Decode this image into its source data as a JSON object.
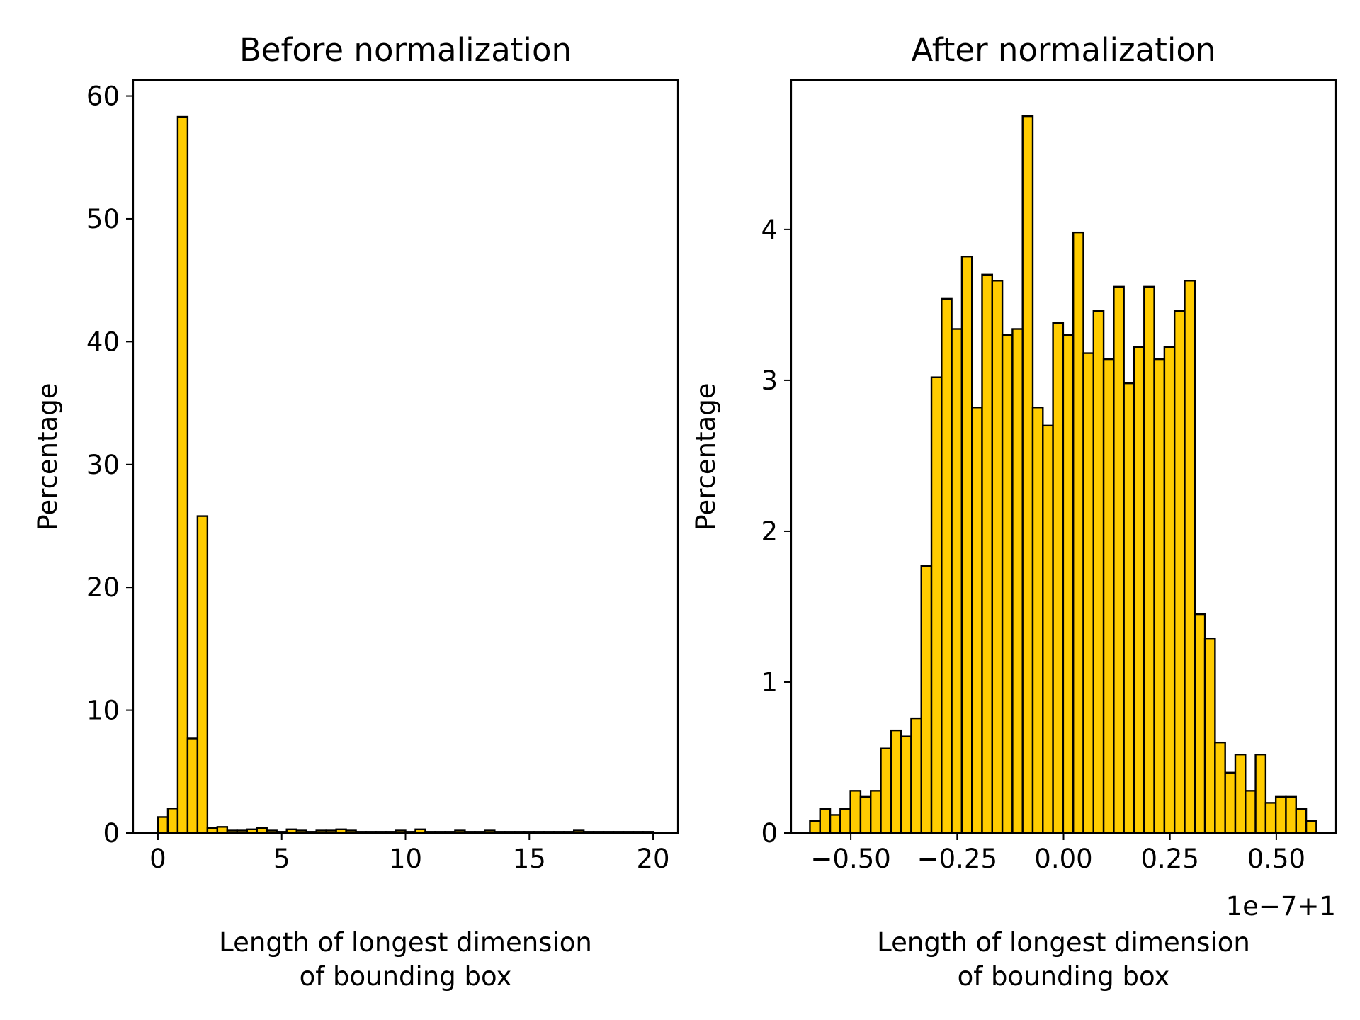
{
  "chart_data": [
    {
      "type": "bar",
      "title": "Before normalization",
      "xlabel": "Length of longest dimension\nof bounding box",
      "ylabel": "Percentage",
      "xlim": [
        -1,
        21
      ],
      "ylim": [
        0,
        61.3
      ],
      "xticks": [
        0,
        5,
        10,
        15,
        20
      ],
      "xtick_labels": [
        "0",
        "5",
        "10",
        "15",
        "20"
      ],
      "yticks": [
        0,
        10,
        20,
        30,
        40,
        50,
        60
      ],
      "ytick_labels": [
        "0",
        "10",
        "20",
        "30",
        "40",
        "50",
        "60"
      ],
      "bin_start": 0,
      "bin_width": 0.4,
      "values": [
        1.3,
        2.0,
        58.3,
        7.7,
        25.8,
        0.4,
        0.5,
        0.2,
        0.2,
        0.3,
        0.4,
        0.2,
        0.1,
        0.3,
        0.2,
        0.1,
        0.2,
        0.2,
        0.3,
        0.2,
        0.1,
        0.1,
        0.1,
        0.1,
        0.2,
        0.1,
        0.3,
        0.1,
        0.1,
        0.1,
        0.2,
        0.1,
        0.1,
        0.2,
        0.1,
        0.1,
        0.1,
        0.1,
        0.1,
        0.1,
        0.1,
        0.1,
        0.2,
        0.1,
        0.1,
        0.1,
        0.1,
        0.1,
        0.1,
        0.1
      ],
      "bar_color": "#FFCC00",
      "edge_color": "#000000"
    },
    {
      "type": "bar",
      "title": "After normalization",
      "xlabel": "Length of longest dimension\nof bounding box",
      "ylabel": "Percentage",
      "offset_text": "1e−7+1",
      "xlim": [
        -0.64,
        0.64
      ],
      "ylim": [
        0,
        4.99
      ],
      "xticks": [
        -0.5,
        -0.25,
        0,
        0.25,
        0.5
      ],
      "xtick_labels": [
        "−0.50",
        "−0.25",
        "0.00",
        "0.25",
        "0.50"
      ],
      "yticks": [
        0,
        1,
        2,
        3,
        4
      ],
      "ytick_labels": [
        "0",
        "1",
        "2",
        "3",
        "4"
      ],
      "bin_start": -0.596,
      "bin_width": 0.0238,
      "values": [
        0.08,
        0.16,
        0.12,
        0.16,
        0.28,
        0.24,
        0.28,
        0.56,
        0.68,
        0.64,
        0.76,
        1.77,
        3.02,
        3.54,
        3.34,
        3.82,
        2.82,
        3.7,
        3.66,
        3.3,
        3.34,
        4.75,
        2.82,
        2.7,
        3.38,
        3.3,
        3.98,
        3.18,
        3.46,
        3.14,
        3.62,
        2.98,
        3.22,
        3.62,
        3.14,
        3.22,
        3.46,
        3.66,
        1.45,
        1.29,
        0.6,
        0.4,
        0.52,
        0.28,
        0.52,
        0.2,
        0.24,
        0.24,
        0.16,
        0.08
      ],
      "bar_color": "#FFCC00",
      "edge_color": "#000000"
    }
  ]
}
